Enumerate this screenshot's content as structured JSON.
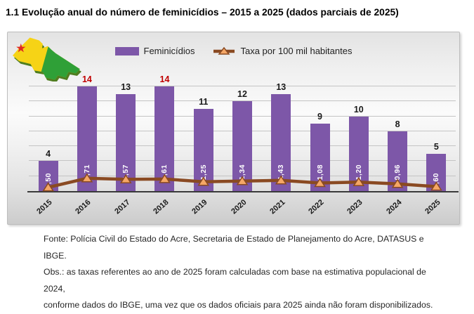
{
  "title": "1.1 Evolução anual do número de feminicídios – 2015 a 2025 (dados parciais de 2025)",
  "icons": {
    "map": "acre-state-map",
    "map_colors": {
      "yellow": "#f6d316",
      "green": "#2fa037",
      "star": "#e02b20",
      "extrusion": "#4f7d20"
    }
  },
  "chart_data": {
    "type": "bar",
    "title": "",
    "xlabel": "",
    "ylabel": "",
    "categories": [
      "2015",
      "2016",
      "2017",
      "2018",
      "2019",
      "2020",
      "2021",
      "2022",
      "2023",
      "2024",
      "2025"
    ],
    "series": [
      {
        "name": "Feminicídios",
        "type": "bar",
        "color": "#7d57a8",
        "values": [
          4,
          14,
          13,
          14,
          11,
          12,
          13,
          9,
          10,
          8,
          5
        ]
      },
      {
        "name": "Taxa por 100 mil habitantes",
        "type": "line",
        "color": "#8a4a22",
        "marker": "triangle",
        "marker_fill": "#f5a766",
        "values": [
          0.5,
          1.71,
          1.57,
          1.61,
          1.25,
          1.34,
          1.43,
          1.08,
          1.2,
          0.96,
          0.6
        ],
        "value_labels": [
          "0,50",
          "1,71",
          "1,57",
          "1,61",
          "1,25",
          "1,34",
          "1,43",
          "1,08",
          "1,20",
          "0,96",
          "0,60"
        ]
      }
    ],
    "ylim": [
      0,
      14
    ],
    "gridline_step": 2,
    "grid": true,
    "legend_position": "top",
    "bar_label_color": "#1a1a1a",
    "red_label_color": "#c00000",
    "red_label_years": [
      "2016",
      "2018"
    ]
  },
  "footer": {
    "source": "Fonte: Polícia Civil do Estado do Acre, Secretaria de Estado de Planejamento do Acre, DATASUS e IBGE.",
    "obs_line1": "Obs.: as taxas referentes ao ano de 2025 foram calculadas com base na estimativa populacional de 2024,",
    "obs_line2": "conforme dados do IBGE, uma vez que os dados oficiais para 2025 ainda não foram disponibilizados."
  }
}
